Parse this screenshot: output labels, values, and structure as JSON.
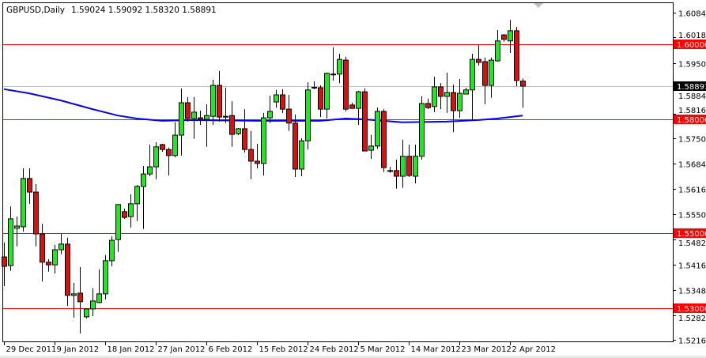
{
  "header": {
    "symbol_timeframe": "GBPUSD,Daily",
    "ohlc": "1.59024 1.59092 1.58320 1.58891"
  },
  "colors": {
    "bull": "#00ff00",
    "bear": "#ff0000",
    "ma": "#0000ff",
    "level": "#ff0000",
    "current": "#c0c0c0"
  },
  "chart_data": {
    "type": "candlestick",
    "title": "GBPUSD,Daily",
    "ylim": [
      1.5183,
      1.6118
    ],
    "grid": false,
    "y_ticks": [
      "1.60840",
      "1.60180",
      "1.59500",
      "1.58840",
      "1.58160",
      "1.57500",
      "1.56840",
      "1.56160",
      "1.55500",
      "1.54820",
      "1.54160",
      "1.53480",
      "1.52820",
      "1.52160"
    ],
    "x_ticks": [
      {
        "bar": 0,
        "label": "29 Dec 2011"
      },
      {
        "bar": 8,
        "label": "9 Jan 2012"
      },
      {
        "bar": 16,
        "label": "18 Jan 2012"
      },
      {
        "bar": 24,
        "label": "27 Jan 2012"
      },
      {
        "bar": 32,
        "label": "6 Feb 2012"
      },
      {
        "bar": 40,
        "label": "15 Feb 2012"
      },
      {
        "bar": 48,
        "label": "24 Feb 2012"
      },
      {
        "bar": 56,
        "label": "5 Mar 2012"
      },
      {
        "bar": 64,
        "label": "14 Mar 2012"
      },
      {
        "bar": 72,
        "label": "23 Mar 2012"
      },
      {
        "bar": 80,
        "label": "2 Apr 2012"
      }
    ],
    "ohlc": [
      [
        1.5436,
        1.5474,
        1.5359,
        1.5411
      ],
      [
        1.5413,
        1.557,
        1.5399,
        1.5537
      ],
      [
        1.5512,
        1.5543,
        1.5464,
        1.5518
      ],
      [
        1.5516,
        1.5671,
        1.5503,
        1.5644
      ],
      [
        1.5644,
        1.5671,
        1.5577,
        1.5608
      ],
      [
        1.5608,
        1.5629,
        1.5464,
        1.5497
      ],
      [
        1.5497,
        1.5524,
        1.5371,
        1.5422
      ],
      [
        1.5422,
        1.543,
        1.5397,
        1.5415
      ],
      [
        1.5415,
        1.5468,
        1.5392,
        1.5455
      ],
      [
        1.5455,
        1.5497,
        1.5443,
        1.547
      ],
      [
        1.547,
        1.5487,
        1.5306,
        1.5334
      ],
      [
        1.5334,
        1.5367,
        1.5275,
        1.5338
      ],
      [
        1.534,
        1.5409,
        1.5233,
        1.5317
      ],
      [
        1.5277,
        1.53,
        1.5273,
        1.5298
      ],
      [
        1.5298,
        1.5353,
        1.5279,
        1.5319
      ],
      [
        1.5315,
        1.5403,
        1.5313,
        1.5338
      ],
      [
        1.5338,
        1.5441,
        1.5323,
        1.5426
      ],
      [
        1.5426,
        1.5491,
        1.5411,
        1.548
      ],
      [
        1.5482,
        1.5575,
        1.5449,
        1.5575
      ],
      [
        1.5556,
        1.5564,
        1.5537,
        1.5541
      ],
      [
        1.5543,
        1.5602,
        1.5514,
        1.5577
      ],
      [
        1.5577,
        1.5627,
        1.5531,
        1.5623
      ],
      [
        1.5623,
        1.5677,
        1.551,
        1.5656
      ],
      [
        1.5656,
        1.5734,
        1.565,
        1.5675
      ],
      [
        1.5675,
        1.574,
        1.5642,
        1.5728
      ],
      [
        1.5734,
        1.5736,
        1.5715,
        1.5721
      ],
      [
        1.5721,
        1.5726,
        1.5652,
        1.5705
      ],
      [
        1.5705,
        1.5793,
        1.57,
        1.5759
      ],
      [
        1.5759,
        1.5883,
        1.5705,
        1.5845
      ],
      [
        1.5845,
        1.586,
        1.5795,
        1.5803
      ],
      [
        1.5803,
        1.586,
        1.5749,
        1.582
      ],
      [
        1.5805,
        1.5824,
        1.5786,
        1.5801
      ],
      [
        1.5801,
        1.5841,
        1.5728,
        1.5811
      ],
      [
        1.5809,
        1.5906,
        1.5786,
        1.5891
      ],
      [
        1.5891,
        1.5929,
        1.5795,
        1.5807
      ],
      [
        1.5809,
        1.5885,
        1.5791,
        1.5808
      ],
      [
        1.5811,
        1.5849,
        1.5728,
        1.5761
      ],
      [
        1.5763,
        1.5778,
        1.5759,
        1.5776
      ],
      [
        1.5776,
        1.5828,
        1.5713,
        1.5721
      ],
      [
        1.5721,
        1.577,
        1.5642,
        1.569
      ],
      [
        1.569,
        1.5736,
        1.5671,
        1.5684
      ],
      [
        1.5684,
        1.5818,
        1.5652,
        1.5805
      ],
      [
        1.5805,
        1.5864,
        1.5791,
        1.5822
      ],
      [
        1.5847,
        1.5879,
        1.5832,
        1.5866
      ],
      [
        1.5866,
        1.5881,
        1.5818,
        1.5828
      ],
      [
        1.5828,
        1.5866,
        1.577,
        1.5791
      ],
      [
        1.5791,
        1.5814,
        1.5648,
        1.5669
      ],
      [
        1.5669,
        1.5751,
        1.565,
        1.5744
      ],
      [
        1.5744,
        1.5899,
        1.5721,
        1.5879
      ],
      [
        1.5885,
        1.5902,
        1.5881,
        1.5886
      ],
      [
        1.5885,
        1.5891,
        1.5807,
        1.5828
      ],
      [
        1.5828,
        1.5925,
        1.5803,
        1.5923
      ],
      [
        1.5921,
        1.5992,
        1.5904,
        1.592
      ],
      [
        1.5921,
        1.5975,
        1.5897,
        1.596
      ],
      [
        1.5958,
        1.5967,
        1.5822,
        1.5828
      ],
      [
        1.5839,
        1.5845,
        1.583,
        1.583
      ],
      [
        1.583,
        1.5877,
        1.5786,
        1.5874
      ],
      [
        1.5874,
        1.5883,
        1.5717,
        1.5717
      ],
      [
        1.5719,
        1.5759,
        1.5696,
        1.573
      ],
      [
        1.573,
        1.5832,
        1.5723,
        1.5822
      ],
      [
        1.5822,
        1.5828,
        1.5661,
        1.5673
      ],
      [
        1.5665,
        1.5675,
        1.5659,
        1.5664
      ],
      [
        1.5665,
        1.5694,
        1.5617,
        1.565
      ],
      [
        1.565,
        1.5747,
        1.5619,
        1.5703
      ],
      [
        1.5703,
        1.5734,
        1.5648,
        1.5652
      ],
      [
        1.565,
        1.5734,
        1.5631,
        1.5703
      ],
      [
        1.5703,
        1.5862,
        1.5694,
        1.5843
      ],
      [
        1.5843,
        1.5856,
        1.5828,
        1.5832
      ],
      [
        1.5835,
        1.5914,
        1.582,
        1.5887
      ],
      [
        1.5887,
        1.5897,
        1.5828,
        1.5862
      ],
      [
        1.5862,
        1.5925,
        1.5818,
        1.5872
      ],
      [
        1.5872,
        1.5893,
        1.5767,
        1.5824
      ],
      [
        1.5824,
        1.5908,
        1.5805,
        1.587
      ],
      [
        1.5868,
        1.5885,
        1.5868,
        1.5879
      ],
      [
        1.5879,
        1.5975,
        1.5799,
        1.596
      ],
      [
        1.596,
        1.6,
        1.5944,
        1.5952
      ],
      [
        1.5954,
        1.5965,
        1.5841,
        1.5891
      ],
      [
        1.5891,
        1.5965,
        1.5858,
        1.5958
      ],
      [
        1.5956,
        1.6038,
        1.5954,
        1.6009
      ],
      [
        1.6025,
        1.6027,
        1.6007,
        1.6013
      ],
      [
        1.6009,
        1.6065,
        1.5977,
        1.6036
      ],
      [
        1.6036,
        1.6046,
        1.5889,
        1.5904
      ],
      [
        1.59024,
        1.59092,
        1.5832,
        1.58891
      ]
    ],
    "moving_average": [
      [
        0,
        1.5881
      ],
      [
        4,
        1.587
      ],
      [
        9,
        1.5851
      ],
      [
        14,
        1.5828
      ],
      [
        18,
        1.5811
      ],
      [
        21,
        1.5803
      ],
      [
        25,
        1.5797
      ],
      [
        30,
        1.5799
      ],
      [
        40,
        1.5797
      ],
      [
        50,
        1.5797
      ],
      [
        54,
        1.5803
      ],
      [
        57,
        1.5801
      ],
      [
        63,
        1.5793
      ],
      [
        70,
        1.5795
      ],
      [
        75,
        1.5799
      ],
      [
        78,
        1.5803
      ],
      [
        80,
        1.5807
      ],
      [
        82,
        1.5811
      ]
    ],
    "levels": [
      {
        "price": 1.6,
        "label": "1.60000"
      },
      {
        "price": 1.58,
        "label": "1.58000"
      },
      {
        "price": 1.55,
        "label": "1.55000"
      },
      {
        "price": 1.53,
        "label": "1.53000"
      }
    ],
    "current_price": {
      "price": 1.58891,
      "label": "1.58891"
    }
  }
}
